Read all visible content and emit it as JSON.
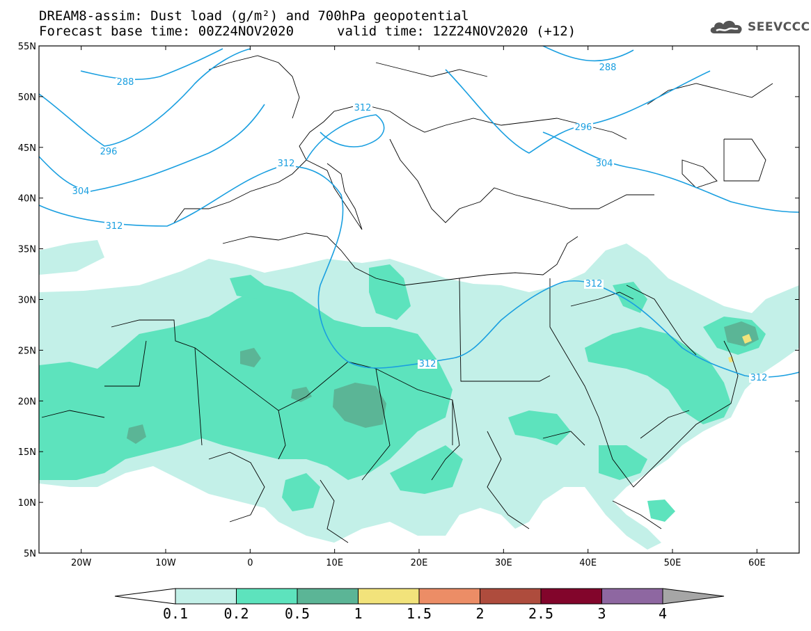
{
  "header": {
    "title_line1": "DREAM8-assim: Dust load (g/m²) and 700hPa geopotential",
    "forecast_base": "Forecast base time: 00Z24NOV2020",
    "valid_time": "valid time: 12Z24NOV2020 (+12)"
  },
  "logo": {
    "text": "SEEVCCC",
    "icon": "cloud-logo-icon"
  },
  "map": {
    "lon_range": [
      -25,
      65
    ],
    "lat_range": [
      5,
      55
    ],
    "lat_labels": [
      "55N",
      "50N",
      "45N",
      "40N",
      "35N",
      "30N",
      "25N",
      "20N",
      "15N",
      "10N",
      "5N"
    ],
    "lon_labels": [
      "20W",
      "10W",
      "0",
      "10E",
      "20E",
      "30E",
      "40E",
      "50E",
      "60E"
    ],
    "contour_labels": [
      "288",
      "288",
      "296",
      "296",
      "304",
      "304",
      "312",
      "312",
      "312",
      "312",
      "312",
      "312"
    ]
  },
  "colorbar": {
    "labels": [
      "0.1",
      "0.2",
      "0.5",
      "1",
      "1.5",
      "2",
      "2.5",
      "3",
      "4"
    ],
    "colors": [
      "#c3f0e8",
      "#5de3bd",
      "#5bb596",
      "#f2e37b",
      "#ec8d66",
      "#ae4c3d",
      "#82052b",
      "#8e67a1",
      "#a6a6a6"
    ],
    "under_color": "#ffffff"
  },
  "colors": {
    "contour": "#1a9fe0",
    "coast": "#000000"
  }
}
